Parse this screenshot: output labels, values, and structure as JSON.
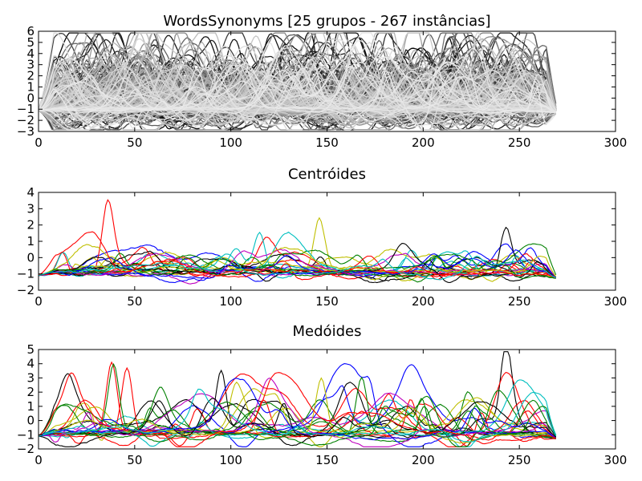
{
  "chart_data": [
    {
      "type": "line",
      "title": "WordsSynonyms [25 grupos - 267 instâncias]",
      "xlim": [
        0,
        300
      ],
      "ylim": [
        -3,
        6
      ],
      "xticks": [
        0,
        50,
        100,
        150,
        200,
        250,
        300
      ],
      "yticks": [
        -3,
        -2,
        -1,
        0,
        1,
        2,
        3,
        4,
        5,
        6
      ],
      "series_count": 267,
      "series_length": 270,
      "palette": "grayscale",
      "grid": false,
      "legend": "none"
    },
    {
      "type": "line",
      "title": "Centróides",
      "xlim": [
        0,
        300
      ],
      "ylim": [
        -2,
        4
      ],
      "xticks": [
        0,
        50,
        100,
        150,
        200,
        250,
        300
      ],
      "yticks": [
        -2,
        -1,
        0,
        1,
        2,
        3,
        4
      ],
      "series_count": 25,
      "series_length": 270,
      "palette": [
        "#0000ff",
        "#008000",
        "#ff0000",
        "#00bfbf",
        "#bf00bf",
        "#bfbf00",
        "#000000"
      ],
      "highlights": [
        {
          "x": 36,
          "y": 3.05,
          "color": "#ff0000"
        },
        {
          "x": 146,
          "y": 2.3,
          "color": "#bfbf00"
        },
        {
          "x": 243,
          "y": 2.0,
          "color": "#000000"
        },
        {
          "x": 115,
          "y": 1.35,
          "color": "#00bfbf"
        }
      ],
      "grid": false,
      "legend": "none"
    },
    {
      "type": "line",
      "title": "Medóides",
      "xlim": [
        0,
        300
      ],
      "ylim": [
        -2,
        5
      ],
      "xticks": [
        0,
        50,
        100,
        150,
        200,
        250,
        300
      ],
      "yticks": [
        -2,
        -1,
        0,
        1,
        2,
        3,
        4,
        5
      ],
      "series_count": 25,
      "series_length": 270,
      "palette": [
        "#0000ff",
        "#008000",
        "#ff0000",
        "#00bfbf",
        "#bf00bf",
        "#bfbf00",
        "#000000"
      ],
      "highlights": [
        {
          "x": 95,
          "y": 4.4,
          "color": "#000000"
        },
        {
          "x": 243,
          "y": 4.5,
          "color": "#000000"
        },
        {
          "x": 38,
          "y": 4.2,
          "color": "#ff0000"
        },
        {
          "x": 46,
          "y": 3.85,
          "color": "#ff0000"
        },
        {
          "x": 39,
          "y": 3.75,
          "color": "#008000"
        },
        {
          "x": 168,
          "y": 3.2,
          "color": "#008000"
        },
        {
          "x": 147,
          "y": 2.9,
          "color": "#bfbf00"
        }
      ],
      "grid": false,
      "legend": "none"
    }
  ]
}
